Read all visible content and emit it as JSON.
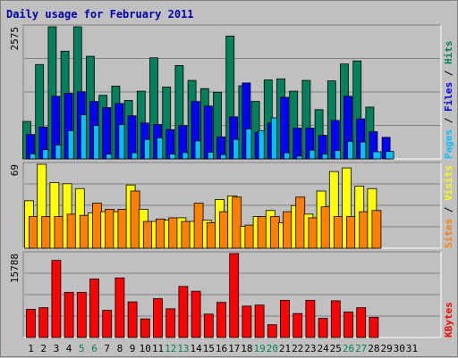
{
  "chart_data": {
    "type": "bar",
    "title": "Daily usage for February 2011",
    "days": [
      "1",
      "2",
      "3",
      "4",
      "5",
      "6",
      "7",
      "8",
      "9",
      "10",
      "11",
      "12",
      "13",
      "14",
      "15",
      "16",
      "17",
      "18",
      "19",
      "20",
      "21",
      "22",
      "23",
      "24",
      "25",
      "26",
      "27",
      "28",
      "29",
      "30",
      "31"
    ],
    "weekend_days": [
      "5",
      "6",
      "12",
      "13",
      "19",
      "20",
      "26",
      "27"
    ],
    "colors": {
      "background": "#c0c0c0",
      "title": "#0000aa",
      "hits": "#00805c",
      "files": "#0000ff",
      "pages": "#00c0ff",
      "visits": "#ffff00",
      "sites": "#ff8000",
      "kbytes": "#ff0000",
      "weekend_label": "#00805c",
      "weekday_label": "#000000"
    },
    "panels": [
      {
        "id": "hits-files-pages",
        "max_label": "2575",
        "ymax": 2575,
        "legend": [
          {
            "text": "Hits",
            "color": "#00805c"
          },
          {
            "text": "Files",
            "color": "#0000ff"
          },
          {
            "text": "Pages",
            "color": "#00c0ff"
          }
        ],
        "series": [
          {
            "name": "Hits",
            "color": "#00805c",
            "values": [
              730,
              1840,
              2575,
              2100,
              2575,
              2000,
              1240,
              1420,
              1140,
              1320,
              1970,
              1400,
              1820,
              1530,
              1370,
              1300,
              2395,
              1425,
              1120,
              1540,
              1560,
              1320,
              1530,
              960,
              1520,
              1850,
              1910,
              1010,
              0,
              0,
              0
            ]
          },
          {
            "name": "Files",
            "color": "#0000ff",
            "values": [
              475,
              620,
              1220,
              1280,
              1310,
              1120,
              1000,
              1080,
              840,
              700,
              670,
              570,
              650,
              1120,
              1030,
              430,
              820,
              1480,
              520,
              700,
              1200,
              600,
              600,
              460,
              750,
              1220,
              780,
              530,
              420,
              0,
              0
            ]
          },
          {
            "name": "Pages",
            "color": "#00c0ff",
            "values": [
              100,
              180,
              270,
              550,
              860,
              650,
              95,
              670,
              120,
              380,
              410,
              95,
              125,
              350,
              130,
              85,
              380,
              585,
              550,
              800,
              120,
              55,
              170,
              95,
              165,
              340,
              330,
              140,
              145,
              0,
              0
            ]
          }
        ]
      },
      {
        "id": "visits-sites",
        "max_label": "69",
        "ymax": 69,
        "legend": [
          {
            "text": "Visits",
            "color": "#ffff00"
          },
          {
            "text": "Sites",
            "color": "#ff8000"
          }
        ],
        "series": [
          {
            "name": "Visits",
            "color": "#ffff00",
            "values": [
              39,
              69,
              54,
              53,
              49,
              29,
              30,
              30,
              52,
              32,
              22,
              23,
              25,
              22,
              23,
              40,
              43,
              18,
              26,
              31,
              21,
              35,
              28,
              47,
              63,
              66,
              51,
              49,
              0,
              0,
              0
            ]
          },
          {
            "name": "Sites",
            "color": "#ff8000",
            "values": [
              26,
              26,
              26,
              28,
              27,
              37,
              32,
              32,
              47,
              22,
              24,
              25,
              22,
              37,
              21,
              30,
              42,
              19,
              26,
              26,
              30,
              42,
              25,
              34,
              26,
              26,
              30,
              31,
              0,
              0,
              0
            ]
          }
        ]
      },
      {
        "id": "kbytes",
        "max_label": "15788",
        "ymax": 15788,
        "legend": [
          {
            "text": "KBytes",
            "color": "#ff0000"
          }
        ],
        "series": [
          {
            "name": "KBytes",
            "color": "#ff0000",
            "values": [
              5300,
              5600,
              14500,
              8500,
              8500,
              11000,
              5100,
              11200,
              6700,
              3500,
              7300,
              5400,
              9600,
              8700,
              4400,
              6600,
              15788,
              5900,
              6100,
              2400,
              7000,
              4500,
              7000,
              3600,
              6900,
              4800,
              5600,
              3800,
              0,
              0,
              0
            ]
          }
        ]
      }
    ]
  }
}
